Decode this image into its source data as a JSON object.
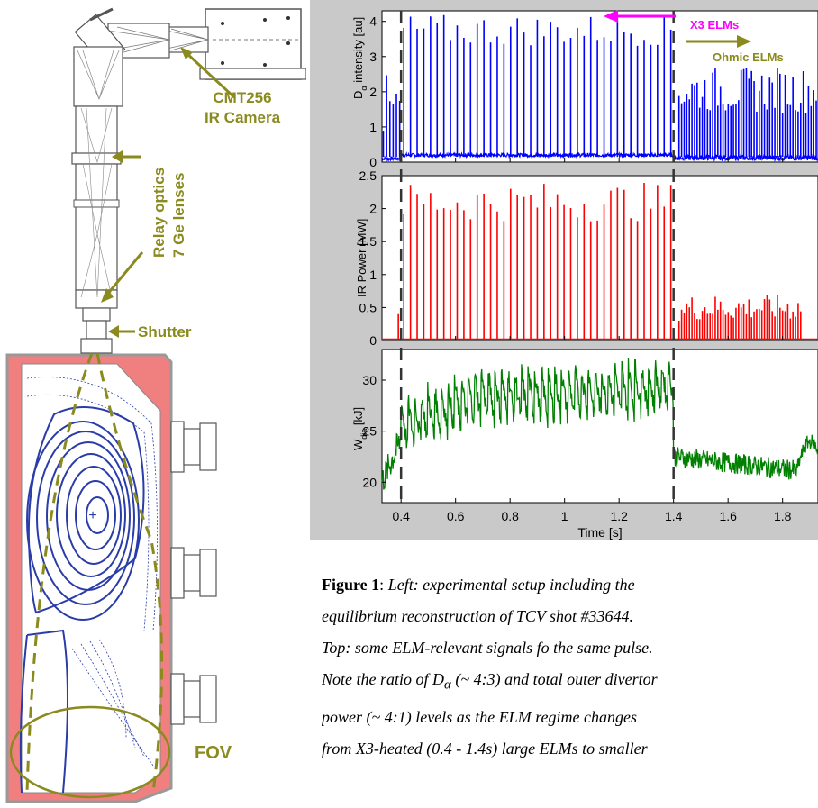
{
  "setup": {
    "camera_label_1": "CMT256",
    "camera_label_2": "IR Camera",
    "relay_label_1": "Relay optics",
    "relay_label_2": "7 Ge lenses",
    "shutter_label": "Shutter",
    "fov_label": "FOV",
    "colors": {
      "label": "#8a8a1e",
      "vessel": "#f08080",
      "flux": "#2a3ca8"
    }
  },
  "annotations": {
    "x3_elms": "X3 ELMs",
    "ohmic_elms": "Ohmic ELMs",
    "x3_color": "#ff00ff",
    "ohmic_color": "#8a8a1e"
  },
  "chart_data": [
    {
      "type": "line",
      "ylabel_main": "D",
      "ylabel_sub": "α",
      "ylabel_rest": " intensity [au]",
      "ylim": [
        0,
        4.3
      ],
      "yticks": [
        "0",
        "1",
        "2",
        "3",
        "4"
      ],
      "color": "#0000ff",
      "x_range": [
        0.33,
        1.93
      ],
      "baseline_x3": 0.15,
      "baseline_ohmic": 0.05,
      "elm_peaks_x3": 4.0,
      "elm_peaks_ohmic": 2.5
    },
    {
      "type": "line",
      "ylabel": "IR Power [MW]",
      "ylim": [
        0,
        2.5
      ],
      "yticks": [
        "0",
        "0.5",
        "1",
        "1.5",
        "2",
        "2.5"
      ],
      "color": "#ff0000",
      "x_range": [
        0.33,
        1.93
      ],
      "elm_peaks_x3": 2.2,
      "elm_peaks_ohmic": 0.6
    },
    {
      "type": "line",
      "ylabel_main": "W",
      "ylabel_sub": "dia",
      "ylabel_rest": " [kJ]",
      "ylim": [
        18,
        33
      ],
      "yticks": [
        "20",
        "25",
        "30"
      ],
      "color": "#008000",
      "x_range": [
        0.33,
        1.93
      ],
      "xlabel": "Time [s]",
      "xticks": [
        "0.4",
        "0.6",
        "0.8",
        "1",
        "1.2",
        "1.4",
        "1.6",
        "1.8"
      ],
      "xtick_values": [
        0.4,
        0.6,
        0.8,
        1.0,
        1.2,
        1.4,
        1.6,
        1.8
      ]
    }
  ],
  "markers": {
    "t1": 0.4,
    "t2": 1.4
  },
  "caption": {
    "fig_label": "Figure 1",
    "colon": ":",
    "line1": " Left: experimental setup including the",
    "line2": "equilibrium reconstruction of  TCV shot #33644.",
    "line3": "Top: some ELM-relevant signals fo the same pulse.",
    "line4a": "Note the ratio of D",
    "line4sub": "α",
    "line4b": " (~ 4:3) and total outer divertor",
    "line5": "power (~ 4:1) levels as the ELM regime changes",
    "line6": "from X3-heated (0.4 - 1.4s) large ELMs to smaller"
  }
}
